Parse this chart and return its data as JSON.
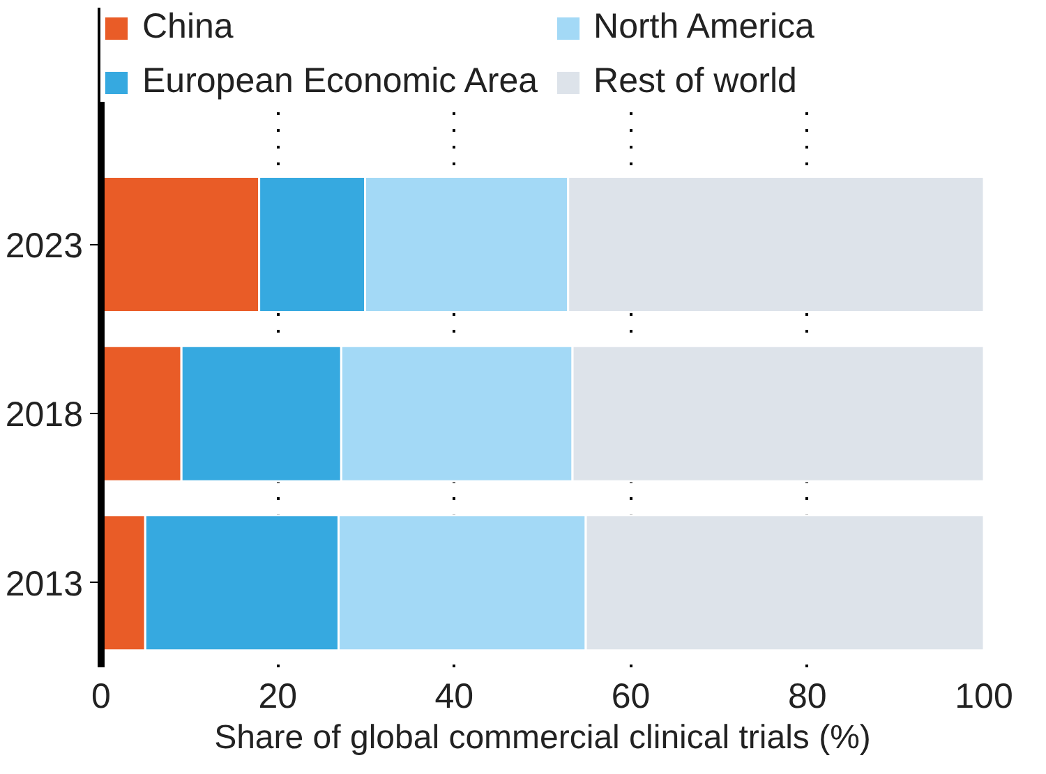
{
  "chart_data": {
    "type": "bar",
    "orientation": "horizontal",
    "stacked": true,
    "xlabel": "Share of global commercial clinical trials (%)",
    "categories": [
      "2023",
      "2018",
      "2013"
    ],
    "series": [
      {
        "name": "China",
        "color": "#e95c27",
        "values": [
          17.9,
          9.1,
          5.0
        ]
      },
      {
        "name": "European Economic Area",
        "color": "#36a9e0",
        "values": [
          12.0,
          18.1,
          21.9
        ]
      },
      {
        "name": "North America",
        "color": "#a3d9f6",
        "values": [
          23.0,
          26.2,
          28.0
        ]
      },
      {
        "name": "Rest of world",
        "color": "#dde3ea",
        "values": [
          47.1,
          46.6,
          45.1
        ]
      }
    ],
    "xlim": [
      0,
      100
    ],
    "xticks": [
      0,
      20,
      40,
      60,
      80,
      100
    ],
    "grid": "x",
    "legend": "top"
  }
}
